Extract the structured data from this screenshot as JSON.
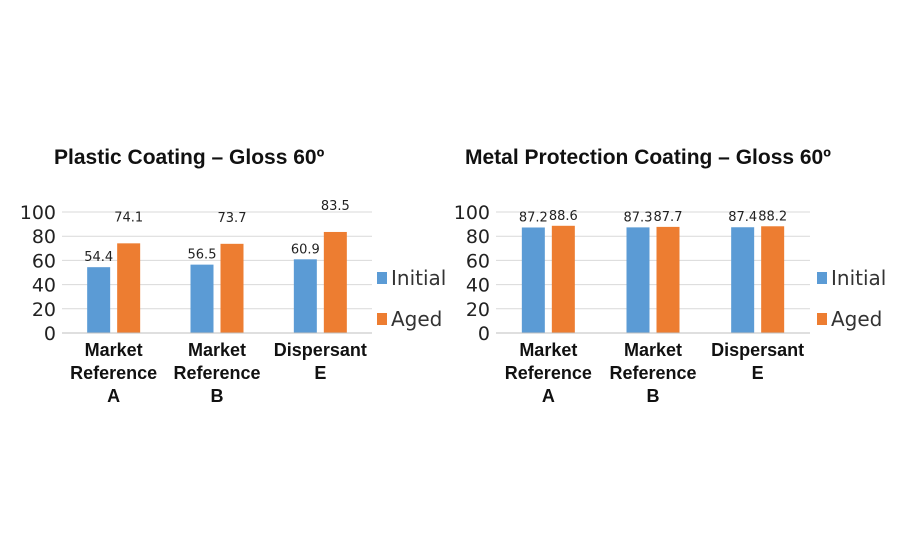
{
  "chart_data": [
    {
      "type": "bar",
      "title": "Plastic Coating – Gloss 60º",
      "categories": [
        [
          "Market",
          "Reference",
          "A"
        ],
        [
          "Market",
          "Reference",
          "B"
        ],
        [
          "Dispersant",
          "E"
        ]
      ],
      "series": [
        {
          "name": "Initial",
          "values": [
            54.4,
            56.5,
            60.9
          ],
          "labels": [
            "54.4",
            "56.5",
            "60.9"
          ],
          "color": "#5B9BD5"
        },
        {
          "name": "Aged",
          "values": [
            74.1,
            73.7,
            83.5
          ],
          "labels": [
            "74.1",
            "73.7",
            "83.5"
          ],
          "color": "#ED7D31"
        }
      ],
      "yticks": [
        "0",
        "20",
        "40",
        "60",
        "80",
        "100"
      ],
      "ylim": [
        0,
        100
      ],
      "grid": true,
      "legend": "right"
    },
    {
      "type": "bar",
      "title": "Metal Protection Coating – Gloss 60º",
      "categories": [
        [
          "Market",
          "Reference",
          "A"
        ],
        [
          "Market",
          "Reference",
          "B"
        ],
        [
          "Dispersant",
          "E"
        ]
      ],
      "series": [
        {
          "name": "Initial",
          "values": [
            87.2,
            87.3,
            87.4
          ],
          "labels": [
            "87.2",
            "87.3",
            "87.4"
          ],
          "color": "#5B9BD5"
        },
        {
          "name": "Aged",
          "values": [
            88.6,
            87.7,
            88.2
          ],
          "labels": [
            "88.6",
            "87.7",
            "88.2"
          ],
          "color": "#ED7D31"
        }
      ],
      "yticks": [
        "0",
        "20",
        "40",
        "60",
        "80",
        "100"
      ],
      "ylim": [
        0,
        100
      ],
      "grid": true,
      "legend": "right"
    }
  ]
}
